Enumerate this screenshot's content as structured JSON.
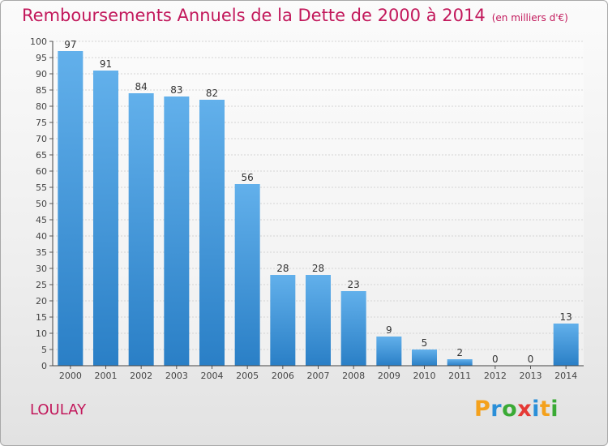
{
  "title": "Remboursements Annuels de la Dette de 2000 à 2014",
  "unit": "(en milliers d'€)",
  "commune": "LOULAY",
  "brand": {
    "letters": [
      "P",
      "r",
      "o",
      "x",
      "i",
      "t",
      "i"
    ],
    "colors": [
      "#f4a11c",
      "#2a8fd8",
      "#3aaa35",
      "#e53935",
      "#2a8fd8",
      "#f4a11c",
      "#3aaa35"
    ]
  },
  "colors": {
    "bar_top": "#62b0eb",
    "bar_bottom": "#2a7fc6",
    "title": "#c2185b"
  },
  "chart_data": {
    "type": "bar",
    "title": "Remboursements Annuels de la Dette de 2000 à 2014",
    "ylabel": "",
    "xlabel": "",
    "categories": [
      "2000",
      "2001",
      "2002",
      "2003",
      "2004",
      "2005",
      "2006",
      "2007",
      "2008",
      "2009",
      "2010",
      "2011",
      "2012",
      "2013",
      "2014"
    ],
    "values": [
      97,
      91,
      84,
      83,
      82,
      56,
      28,
      28,
      23,
      9,
      5,
      2,
      0,
      0,
      13
    ],
    "ylim": [
      0,
      100
    ],
    "yticks": [
      0,
      5,
      10,
      15,
      20,
      25,
      30,
      35,
      40,
      45,
      50,
      55,
      60,
      65,
      70,
      75,
      80,
      85,
      90,
      95,
      100
    ],
    "grid": true
  }
}
